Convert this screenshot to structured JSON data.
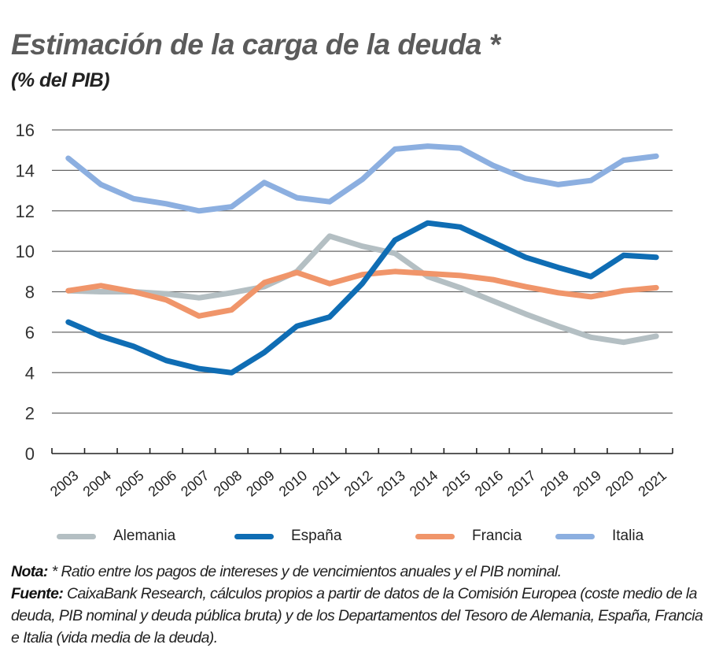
{
  "header": {
    "title": "Estimación de la carga de la deuda *",
    "subtitle": "(% del PIB)"
  },
  "colors": {
    "Alemania": "#b4bfc3",
    "España": "#0f6db4",
    "Francia": "#f0956a",
    "Italia": "#8cafe0",
    "grid": "#666666",
    "axis": "#222222"
  },
  "chart_data": {
    "type": "line",
    "title": "Estimación de la carga de la deuda *",
    "subtitle": "(% del PIB)",
    "xlabel": "",
    "ylabel": "",
    "ylim": [
      0,
      16
    ],
    "yticks": [
      0,
      2,
      4,
      6,
      8,
      10,
      12,
      14,
      16
    ],
    "grid": true,
    "legend_position": "bottom",
    "categories": [
      "2003",
      "2004",
      "2005",
      "2006",
      "2007",
      "2008",
      "2009",
      "2010",
      "2011",
      "2012",
      "2013",
      "2014",
      "2015",
      "2016",
      "2017",
      "2018",
      "2019",
      "2020",
      "2021"
    ],
    "series": [
      {
        "name": "Alemania",
        "values": [
          8.05,
          8.0,
          8.0,
          7.9,
          7.7,
          7.95,
          8.25,
          9.0,
          10.75,
          10.25,
          9.9,
          8.75,
          8.2,
          7.55,
          6.9,
          6.3,
          5.75,
          5.5,
          5.8
        ]
      },
      {
        "name": "España",
        "values": [
          6.5,
          5.8,
          5.3,
          4.6,
          4.2,
          4.0,
          5.0,
          6.3,
          6.75,
          8.4,
          10.55,
          11.4,
          11.2,
          10.45,
          9.7,
          9.2,
          8.75,
          9.8,
          9.7
        ]
      },
      {
        "name": "Francia",
        "values": [
          8.05,
          8.3,
          8.0,
          7.6,
          6.8,
          7.1,
          8.45,
          8.95,
          8.4,
          8.85,
          9.0,
          8.9,
          8.8,
          8.6,
          8.25,
          7.95,
          7.75,
          8.05,
          8.2
        ]
      },
      {
        "name": "Italia",
        "values": [
          14.6,
          13.3,
          12.6,
          12.35,
          12.0,
          12.2,
          13.4,
          12.65,
          12.45,
          13.55,
          15.05,
          15.2,
          15.1,
          14.25,
          13.6,
          13.3,
          13.5,
          14.5,
          14.7
        ]
      }
    ]
  },
  "legend": {
    "items": [
      "Alemania",
      "España",
      "Francia",
      "Italia"
    ]
  },
  "footer": {
    "nota_label": "Nota:",
    "nota_text": " * Ratio entre los pagos de intereses y de vencimientos anuales y el PIB nominal.",
    "fuente_label": "Fuente:",
    "fuente_text": " CaixaBank Research, cálculos propios a partir de datos de la Comisión Europea (coste medio de la deuda, PIB nominal y deuda pública bruta) y de los Departamentos del Tesoro de Alemania, España, Francia e Italia (vida media de la deuda)."
  }
}
